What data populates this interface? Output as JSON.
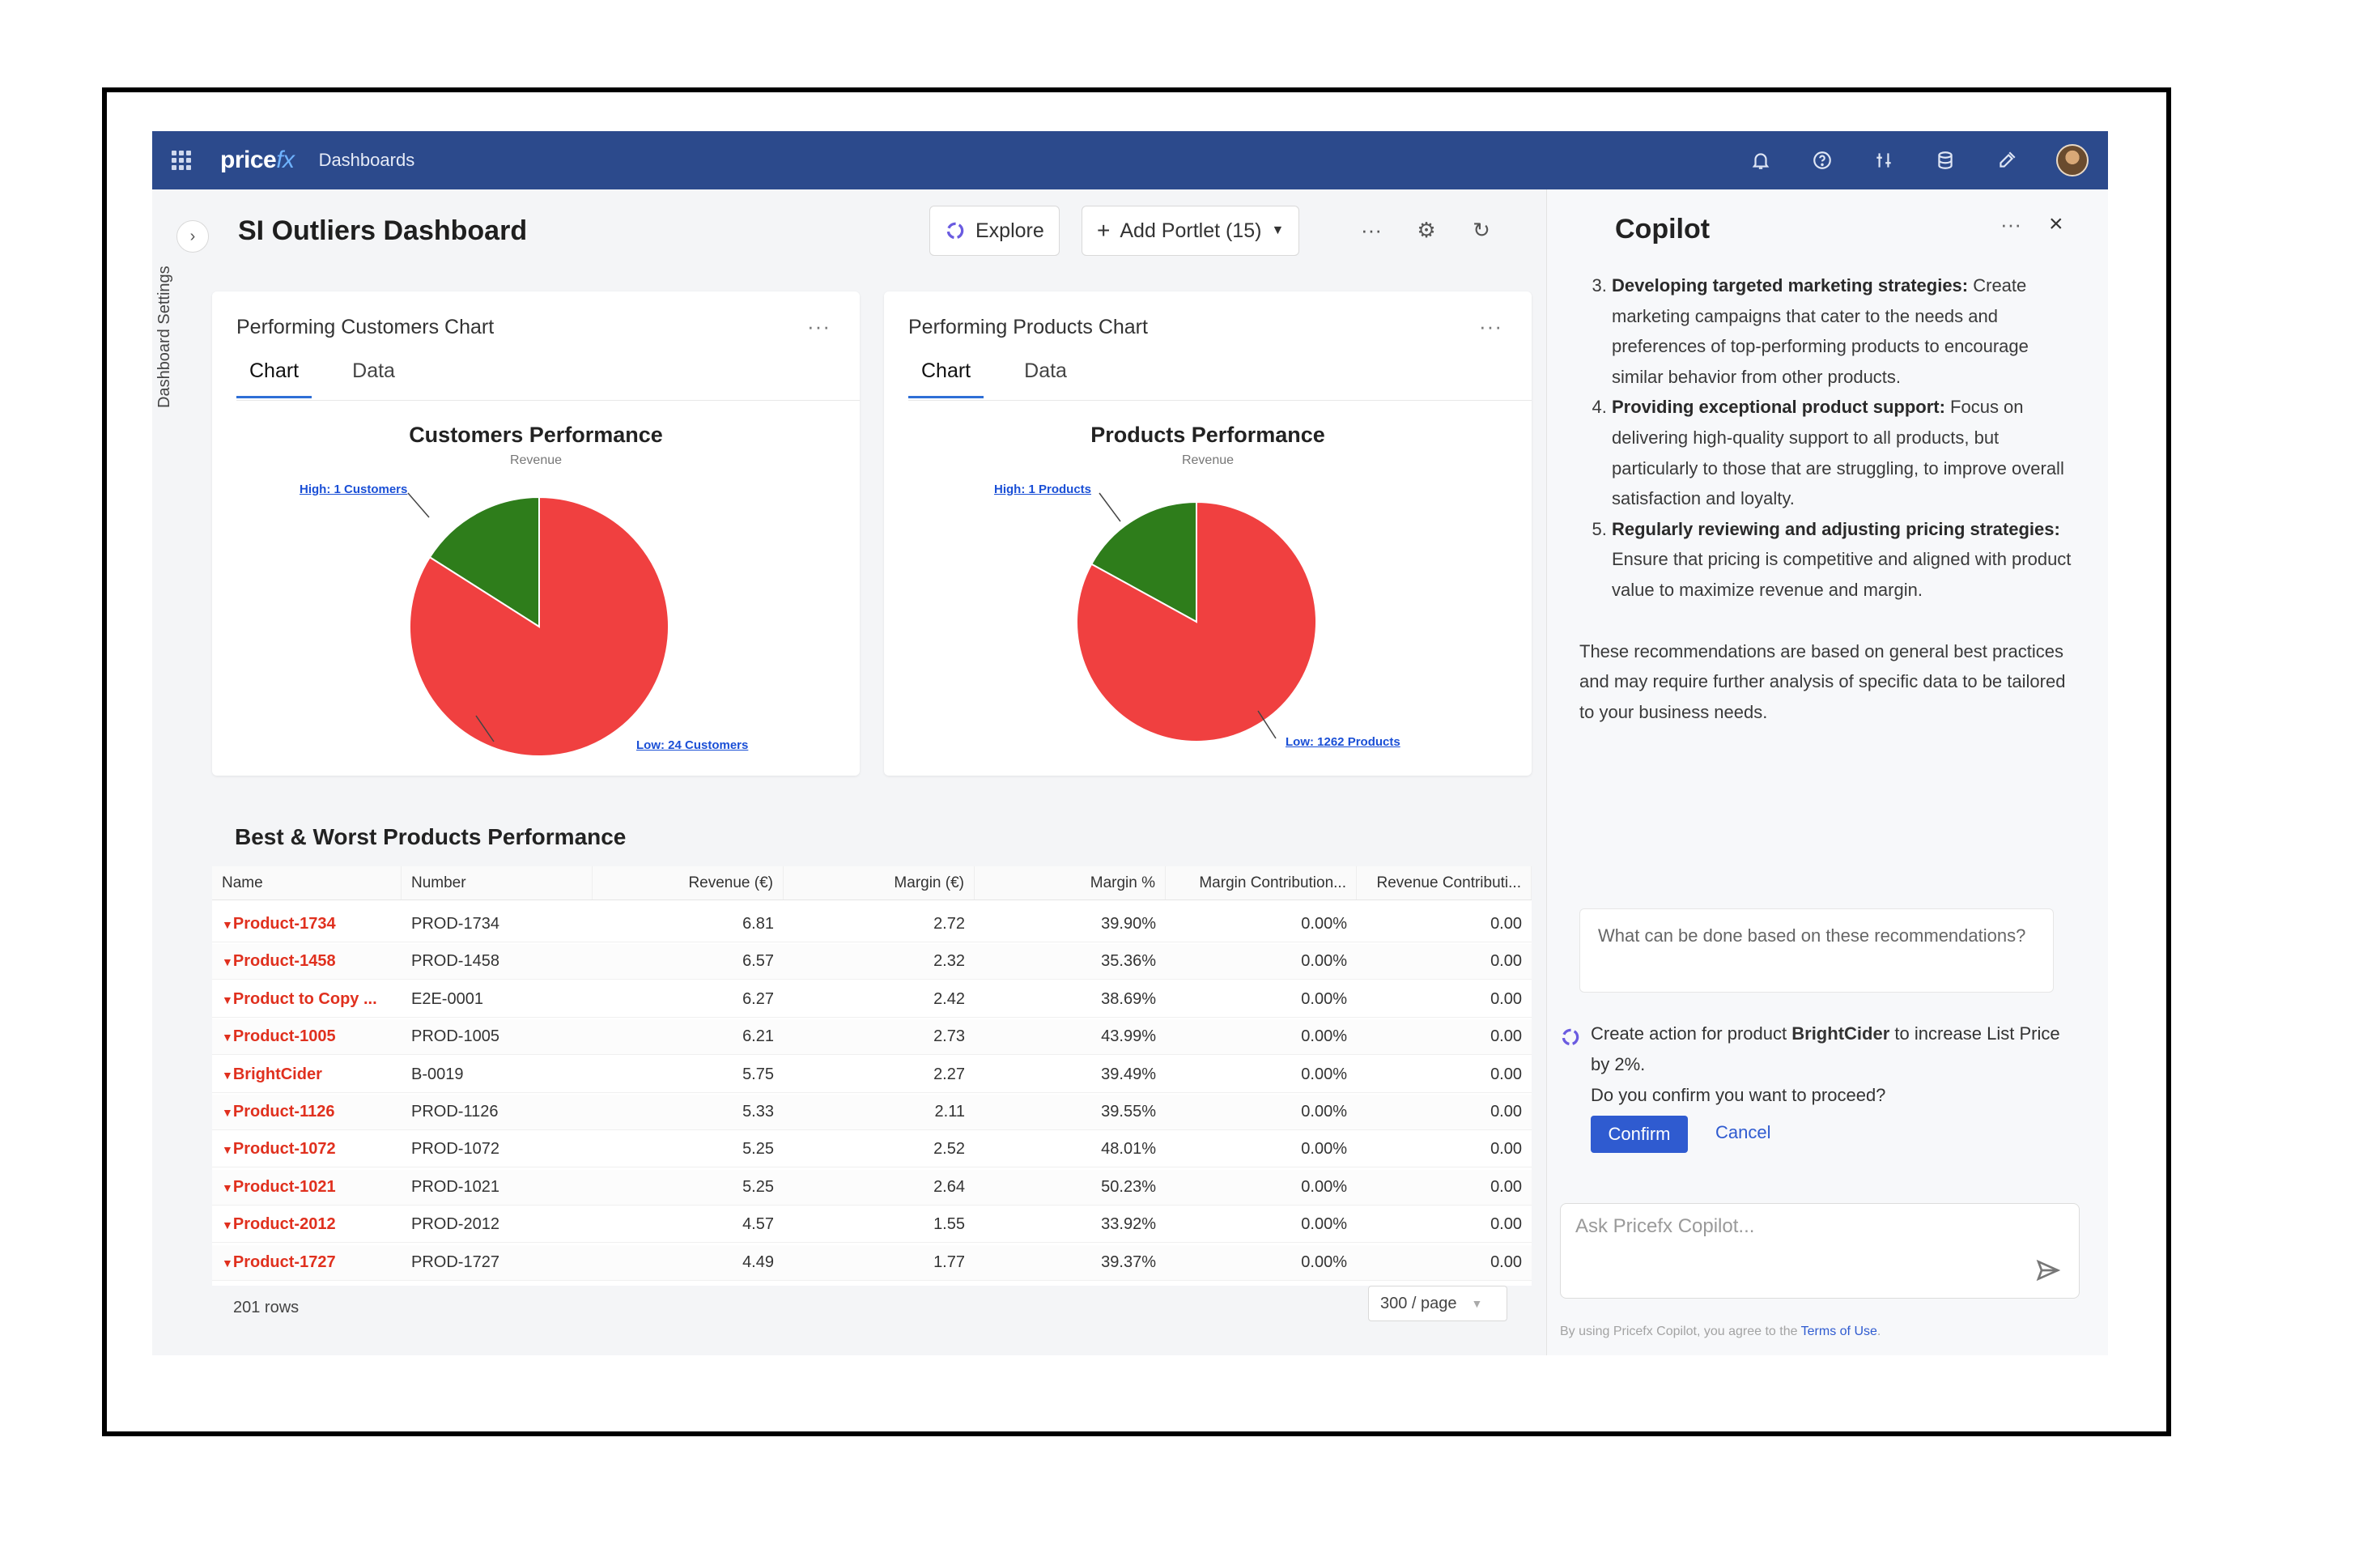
{
  "topbar": {
    "logo_main": "price",
    "logo_fx": "fx",
    "breadcrumb": "Dashboards",
    "icons": [
      "bell-icon",
      "help-icon",
      "network-icon",
      "database-icon",
      "tools-icon",
      "avatar"
    ]
  },
  "rail": {
    "label": "Dashboard Settings",
    "toggle_glyph": "›"
  },
  "dashboard": {
    "title": "SI Outliers Dashboard",
    "explore_label": "Explore",
    "add_portlet_label": "Add Portlet (15)",
    "more_glyph": "···",
    "gear_glyph": "⚙",
    "refresh_glyph": "↻"
  },
  "portlets": [
    {
      "title": "Performing Customers Chart",
      "tabs": [
        "Chart",
        "Data"
      ],
      "chart_title": "Customers Performance",
      "chart_subtitle": "Revenue",
      "high_label": "High: 1 Customers",
      "low_label": "Low: 24 Customers"
    },
    {
      "title": "Performing Products Chart",
      "tabs": [
        "Chart",
        "Data"
      ],
      "chart_title": "Products Performance",
      "chart_subtitle": "Revenue",
      "high_label": "High: 1 Products",
      "low_label": "Low: 1262 Products"
    }
  ],
  "chart_data": [
    {
      "type": "pie",
      "title": "Customers Performance",
      "subtitle": "Revenue",
      "labels": [
        "High: 1 Customers",
        "Low: 24 Customers"
      ],
      "values": [
        16,
        84
      ],
      "colors": [
        "#2e7d1b",
        "#f04040"
      ]
    },
    {
      "type": "pie",
      "title": "Products Performance",
      "subtitle": "Revenue",
      "labels": [
        "High: 1 Products",
        "Low: 1262 Products"
      ],
      "values": [
        17,
        83
      ],
      "colors": [
        "#2e7d1b",
        "#f04040"
      ]
    }
  ],
  "table": {
    "title": "Best & Worst Products Performance",
    "columns": [
      "Name",
      "Number",
      "Revenue (€)",
      "Margin (€)",
      "Margin %",
      "Margin Contribution...",
      "Revenue Contributi..."
    ],
    "rows": [
      [
        "Product-1734",
        "PROD-1734",
        "6.81",
        "2.72",
        "39.90%",
        "0.00%",
        "0.00"
      ],
      [
        "Product-1458",
        "PROD-1458",
        "6.57",
        "2.32",
        "35.36%",
        "0.00%",
        "0.00"
      ],
      [
        "Product to Copy ...",
        "E2E-0001",
        "6.27",
        "2.42",
        "38.69%",
        "0.00%",
        "0.00"
      ],
      [
        "Product-1005",
        "PROD-1005",
        "6.21",
        "2.73",
        "43.99%",
        "0.00%",
        "0.00"
      ],
      [
        "BrightCider",
        "B-0019",
        "5.75",
        "2.27",
        "39.49%",
        "0.00%",
        "0.00"
      ],
      [
        "Product-1126",
        "PROD-1126",
        "5.33",
        "2.11",
        "39.55%",
        "0.00%",
        "0.00"
      ],
      [
        "Product-1072",
        "PROD-1072",
        "5.25",
        "2.52",
        "48.01%",
        "0.00%",
        "0.00"
      ],
      [
        "Product-1021",
        "PROD-1021",
        "5.25",
        "2.64",
        "50.23%",
        "0.00%",
        "0.00"
      ],
      [
        "Product-2012",
        "PROD-2012",
        "4.57",
        "1.55",
        "33.92%",
        "0.00%",
        "0.00"
      ],
      [
        "Product-1727",
        "PROD-1727",
        "4.49",
        "1.77",
        "39.37%",
        "0.00%",
        "0.00"
      ]
    ],
    "row_count": "201 rows",
    "page_size": "300 / page"
  },
  "copilot": {
    "title": "Copilot",
    "more_glyph": "···",
    "close_glyph": "×",
    "items": [
      {
        "num": "3.",
        "bold": "Developing targeted marketing strategies:",
        "text": " Create marketing campaigns that cater to the needs and preferences of top-performing products to encourage similar behavior from other products."
      },
      {
        "num": "4.",
        "bold": "Providing exceptional product support:",
        "text": " Focus on delivering high-quality support to all products, but particularly to those that are struggling, to improve overall satisfaction and loyalty."
      },
      {
        "num": "5.",
        "bold": "Regularly reviewing and adjusting pricing strategies:",
        "text": " Ensure that pricing is competitive and aligned with product value to maximize revenue and margin."
      }
    ],
    "paragraph": "These recommendations are based on general best practices and may require further analysis of specific data to be tailored to your business needs.",
    "user_question": "What can be done based on these recommendations?",
    "action_prefix": "Create action for product ",
    "action_product": "BrightCider",
    "action_suffix": " to increase List Price by 2%.",
    "action_confirm_q": "Do you confirm you want to proceed?",
    "confirm_label": "Confirm",
    "cancel_label": "Cancel",
    "input_placeholder": "Ask Pricefx Copilot...",
    "terms_prefix": "By using Pricefx Copilot, you agree to the ",
    "terms_link": "Terms of Use",
    "terms_suffix": "."
  }
}
